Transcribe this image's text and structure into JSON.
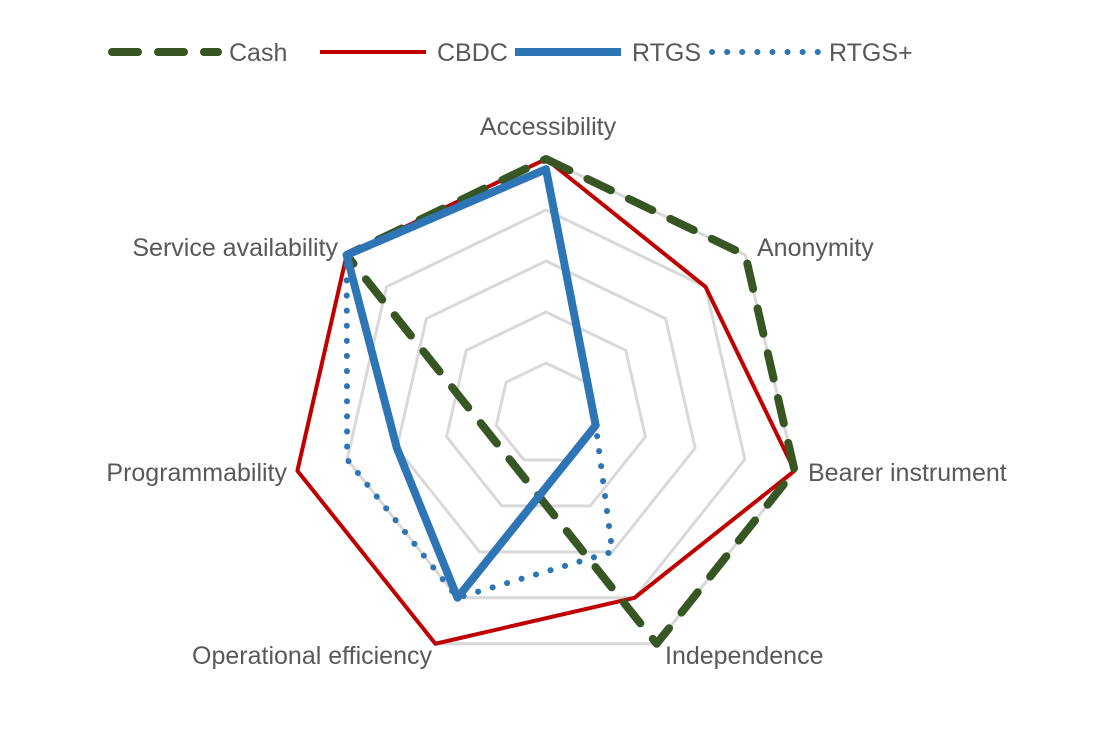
{
  "chart_data": {
    "type": "radar",
    "title": "",
    "axes": [
      "Accessibility",
      "Anonymity",
      "Bearer instrument",
      "Independence",
      "Operational efficiency",
      "Programmability",
      "Service availability"
    ],
    "range": [
      0,
      5
    ],
    "grid": true,
    "legend_position": "top",
    "series": [
      {
        "name": "Cash",
        "color": "#375623",
        "style": "dashed",
        "values": [
          5,
          5,
          5,
          5,
          null,
          null,
          5
        ]
      },
      {
        "name": "CBDC",
        "color": "#C00000",
        "style": "solid",
        "values": [
          5,
          4,
          5,
          4,
          5,
          5,
          5
        ]
      },
      {
        "name": "RTGS",
        "color": "#2E75B6",
        "style": "thick",
        "values": [
          4.8,
          null,
          1,
          null,
          4,
          3,
          5
        ]
      },
      {
        "name": "RTGS+",
        "color": "#2E75B6",
        "style": "dotted",
        "values": [
          4.8,
          null,
          1,
          3,
          4,
          4,
          5
        ]
      }
    ]
  }
}
